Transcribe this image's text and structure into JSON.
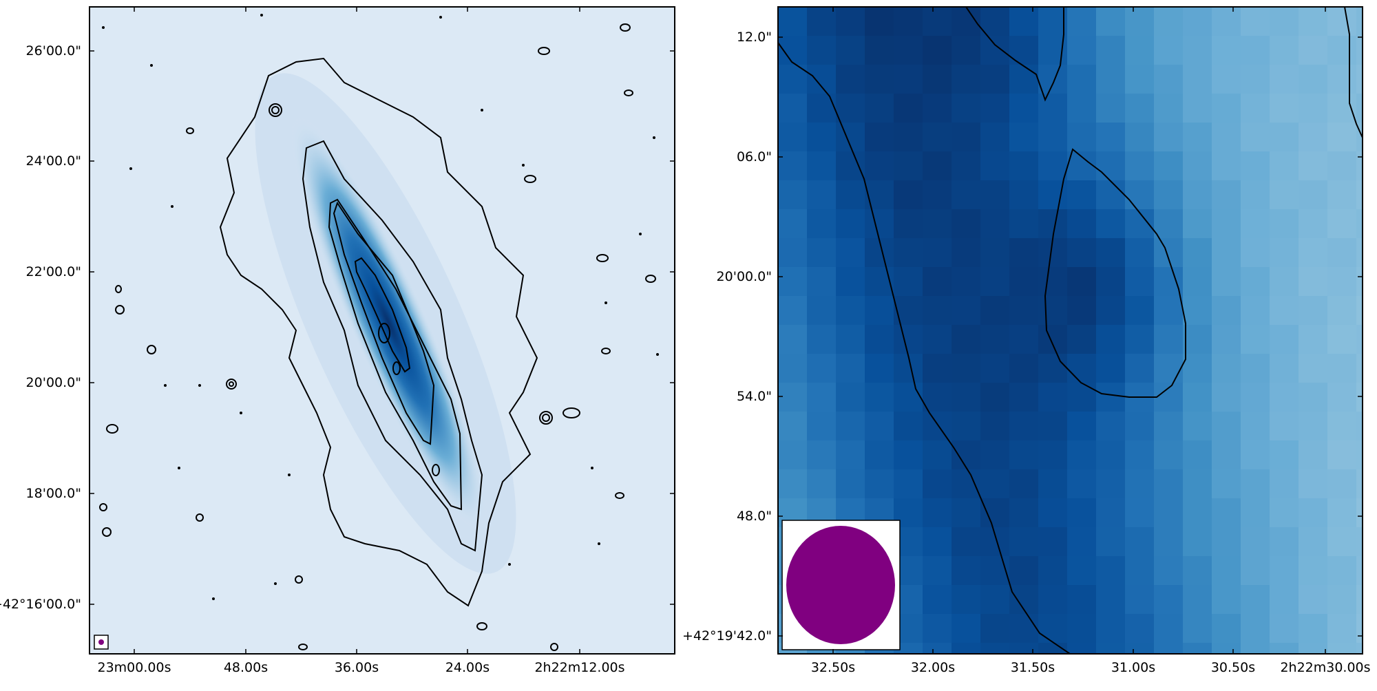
{
  "chart_data": [
    {
      "type": "heatmap",
      "title": "",
      "xlabel": "",
      "ylabel": "",
      "colormap": "Blues",
      "contours": true,
      "contour_color": "#000000",
      "beam_color": "#800080",
      "x_ticks": [
        "23m00.00s",
        "48.00s",
        "36.00s",
        "24.00s",
        "2h22m12.00s"
      ],
      "y_ticks": [
        "+42°16'00.0\"",
        "18'00.0\"",
        "20'00.0\"",
        "22'00.0\"",
        "24'00.0\"",
        "26'00.0\""
      ]
    },
    {
      "type": "heatmap",
      "title": "",
      "xlabel": "",
      "ylabel": "",
      "colormap": "Blues",
      "contours": true,
      "contour_color": "#000000",
      "beam_color": "#800080",
      "x_ticks": [
        "32.50s",
        "32.00s",
        "31.50s",
        "31.00s",
        "30.50s",
        "2h22m30.00s"
      ],
      "y_ticks": [
        "+42°19'42.0\"",
        "48.0\"",
        "54.0\"",
        "20'00.0\"",
        "06.0\"",
        "12.0\""
      ]
    }
  ]
}
